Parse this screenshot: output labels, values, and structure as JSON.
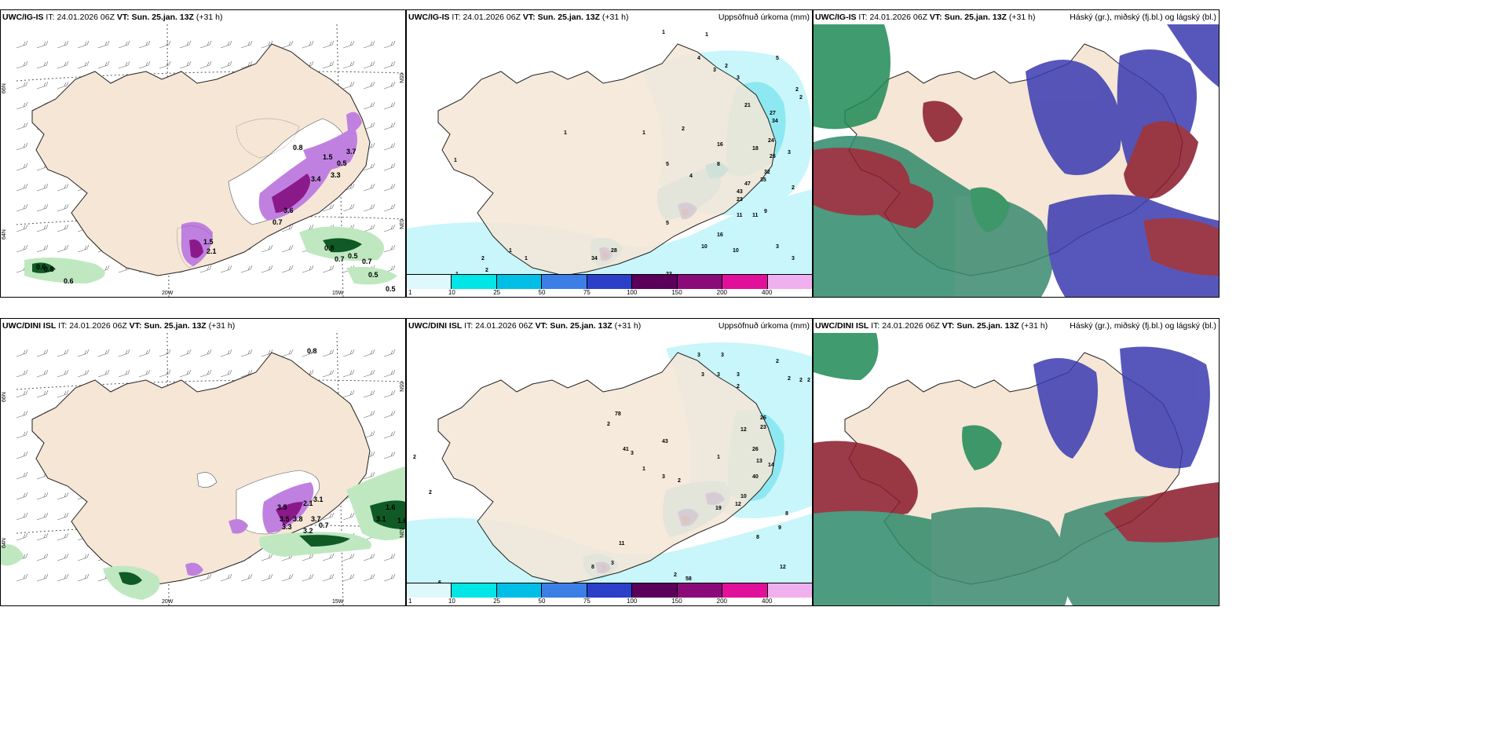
{
  "panels": [
    {
      "id": "p1",
      "model": "UWC/IG-IS",
      "it_label": "IT:",
      "it_value": "24.01.2026 06Z",
      "vt_label": "VT:",
      "vt_value": "Sun. 25.jan. 13Z",
      "lead": "(+31 h)",
      "right_title": "",
      "lat_labels": [
        "66N",
        "64N",
        "65N",
        "63N"
      ],
      "lon_labels": [
        "20W",
        "15W"
      ],
      "values": [
        "0.6",
        "0.8",
        "0.6",
        "1.5",
        "2.1",
        "3.6",
        "0.7",
        "0.8",
        "0.7",
        "0.5",
        "0.7",
        "0.5",
        "0.5",
        "0.8",
        "1.5",
        "0.5",
        "3.4",
        "3.3",
        "3.7"
      ]
    },
    {
      "id": "p2",
      "model": "UWC/IG-IS",
      "it_label": "IT:",
      "it_value": "24.01.2026 06Z",
      "vt_label": "VT:",
      "vt_value": "Sun. 25.jan. 13Z",
      "lead": "(+31 h)",
      "right_title": "Uppsöfnuð úrkoma (mm)",
      "values": [
        "1",
        "1",
        "4",
        "3",
        "2",
        "3",
        "5",
        "21",
        "27",
        "34",
        "2",
        "2",
        "1",
        "2",
        "18",
        "24",
        "16",
        "3",
        "5",
        "32",
        "4",
        "8",
        "35",
        "26",
        "2",
        "47",
        "43",
        "23",
        "9",
        "11",
        "11",
        "5",
        "10",
        "16",
        "10",
        "3",
        "28",
        "34",
        "23",
        "3",
        "1",
        "1",
        "2",
        "2",
        "1",
        "4",
        "16",
        "7",
        "2",
        "1",
        "1"
      ]
    },
    {
      "id": "p3",
      "model": "UWC/IG-IS",
      "it_label": "IT:",
      "it_value": "24.01.2026 06Z",
      "vt_label": "VT:",
      "vt_value": "Sun. 25.jan. 13Z",
      "lead": "(+31 h)",
      "right_title": "Háský (gr.), miðský (fj.bl.) og lágský (bl.)"
    },
    {
      "id": "p4",
      "model": "UWC/DINI ISL",
      "it_label": "IT:",
      "it_value": "24.01.2026 06Z",
      "vt_label": "VT:",
      "vt_value": "Sun. 25.jan. 13Z",
      "lead": "(+31 h)",
      "right_title": "",
      "lat_labels": [
        "66N",
        "64N",
        "65N",
        "63N"
      ],
      "lon_labels": [
        "20W",
        "15W"
      ],
      "values": [
        "0.8",
        "0.7",
        "3.5",
        "2.1",
        "3.8",
        "3.5",
        "3.3",
        "3.2",
        "3.7",
        "3.1",
        "1.6",
        "3.1",
        "1.6"
      ]
    },
    {
      "id": "p5",
      "model": "UWC/DINI ISL",
      "it_label": "IT:",
      "it_value": "24.01.2026 06Z",
      "vt_label": "VT:",
      "vt_value": "Sun. 25.jan. 13Z",
      "lead": "(+31 h)",
      "right_title": "Uppsöfnuð úrkoma (mm)",
      "values": [
        "3",
        "3",
        "3",
        "3",
        "3",
        "2",
        "2",
        "2",
        "2",
        "2",
        "26",
        "23",
        "26",
        "13",
        "14",
        "40",
        "12",
        "8",
        "9",
        "8",
        "10",
        "12",
        "19",
        "43",
        "78",
        "41",
        "3",
        "8",
        "7",
        "2",
        "5",
        "58",
        "30",
        "11",
        "12",
        "20",
        "20",
        "12",
        "11",
        "4",
        "4",
        "6",
        "6",
        "2",
        "2",
        "3",
        "3",
        "2",
        "1",
        "2",
        "1"
      ]
    },
    {
      "id": "p6",
      "model": "UWC/DINI ISL",
      "it_label": "IT:",
      "it_value": "24.01.2026 06Z",
      "vt_label": "VT:",
      "vt_value": "Sun. 25.jan. 13Z",
      "lead": "(+31 h)",
      "right_title": "Háský (gr.), miðský (fj.bl.) og lágský (bl.)"
    }
  ],
  "colorbar": {
    "ticks": [
      "1",
      "10",
      "25",
      "50",
      "75",
      "100",
      "150",
      "200",
      "400"
    ],
    "colors": [
      "#dff8fb",
      "#00e5e5",
      "#00bfe6",
      "#3b7fe6",
      "#2b3fc8",
      "#5a005a",
      "#8a0a7a",
      "#e0109a",
      "#f0b0f0"
    ]
  },
  "colors": {
    "land": "#f5e6d6",
    "sea": "#ffffff",
    "snow_light": "#d8b8f0",
    "snow_heavy": "#8a1a8a",
    "rain_light": "#bfe8c0",
    "rain_heavy": "#0f5a25",
    "precip_light": "#a8f0f5",
    "cloud_high": "#1f8a55",
    "cloud_mid": "#3a3ab0",
    "cloud_low": "#8a1a2a"
  }
}
